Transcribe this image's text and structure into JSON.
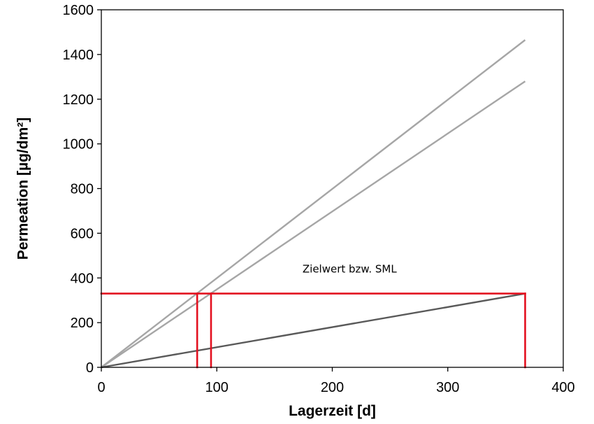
{
  "chart_data": {
    "type": "line",
    "title": "",
    "xlabel": "Lagerzeit [d]",
    "ylabel": "Permeation [µg/dm²]",
    "xlim": [
      0,
      400
    ],
    "ylim": [
      0,
      1600
    ],
    "x_ticks": [
      "0",
      "100",
      "200",
      "300",
      "400"
    ],
    "y_ticks": [
      "0",
      "200",
      "400",
      "600",
      "800",
      "1000",
      "1200",
      "1400",
      "1600"
    ],
    "grid": false,
    "series": [
      {
        "x": [
          0,
          367
        ],
        "y": [
          0,
          1465
        ],
        "color": "#a6a6a6"
      },
      {
        "x": [
          0,
          367
        ],
        "y": [
          0,
          1280
        ],
        "color": "#a6a6a6"
      },
      {
        "x": [
          0,
          367
        ],
        "y": [
          0,
          330
        ],
        "color": "#595959"
      }
    ],
    "reference_lines": [
      {
        "x": [
          0,
          367
        ],
        "y": [
          330,
          330
        ],
        "color": "#e3101f"
      },
      {
        "x": [
          83,
          83
        ],
        "y": [
          0,
          330
        ],
        "color": "#e3101f"
      },
      {
        "x": [
          95,
          95
        ],
        "y": [
          0,
          330
        ],
        "color": "#e3101f"
      },
      {
        "x": [
          367,
          367
        ],
        "y": [
          0,
          330
        ],
        "color": "#e3101f"
      }
    ],
    "annotations": [
      {
        "text": "Zielwert bzw. SML",
        "x": 215,
        "y": 425
      }
    ]
  }
}
